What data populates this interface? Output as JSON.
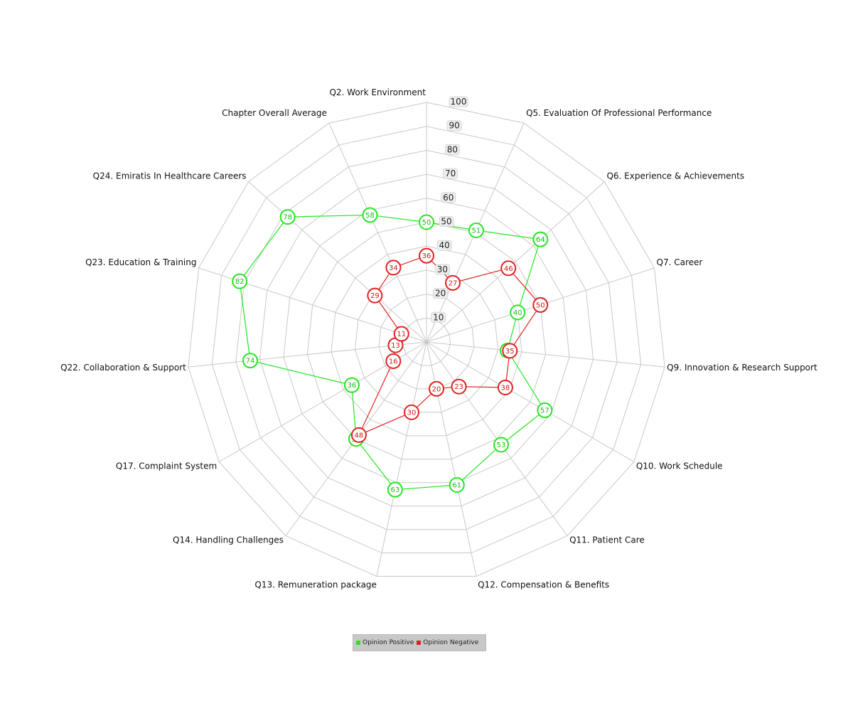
{
  "chart_data": {
    "type": "radar",
    "categories": [
      "Q2. Work Environment",
      "Q5. Evaluation Of Professional Performance",
      "Q6. Experience & Achievements",
      "Q7. Career",
      "Q9. Innovation & Research Support",
      "Q10. Work Schedule",
      "Q11. Patient Care",
      "Q12. Compensation & Benefits",
      "Q13. Remuneration package",
      "Q14. Handling Challenges",
      "Q17. Complaint System",
      "Q22. Collaboration & Support",
      "Q23. Education & Training",
      "Q24. Emiratis In Healthcare Careers",
      "Chapter Overall Average"
    ],
    "r_ticks": [
      10,
      20,
      30,
      40,
      50,
      60,
      70,
      80,
      90,
      100
    ],
    "r_range": [
      0,
      100
    ],
    "grid": true,
    "legend_position": "bottom",
    "series": [
      {
        "name": "Opinion Positive",
        "color": "#22e622",
        "values": [
          50,
          51,
          64,
          40,
          34,
          57,
          53,
          61,
          63,
          50,
          36,
          74,
          82,
          78,
          58
        ]
      },
      {
        "name": "Opinion Negative",
        "color": "#e02020",
        "values": [
          36,
          27,
          46,
          50,
          35,
          38,
          23,
          20,
          30,
          48,
          16,
          13,
          11,
          29,
          34
        ]
      }
    ]
  }
}
